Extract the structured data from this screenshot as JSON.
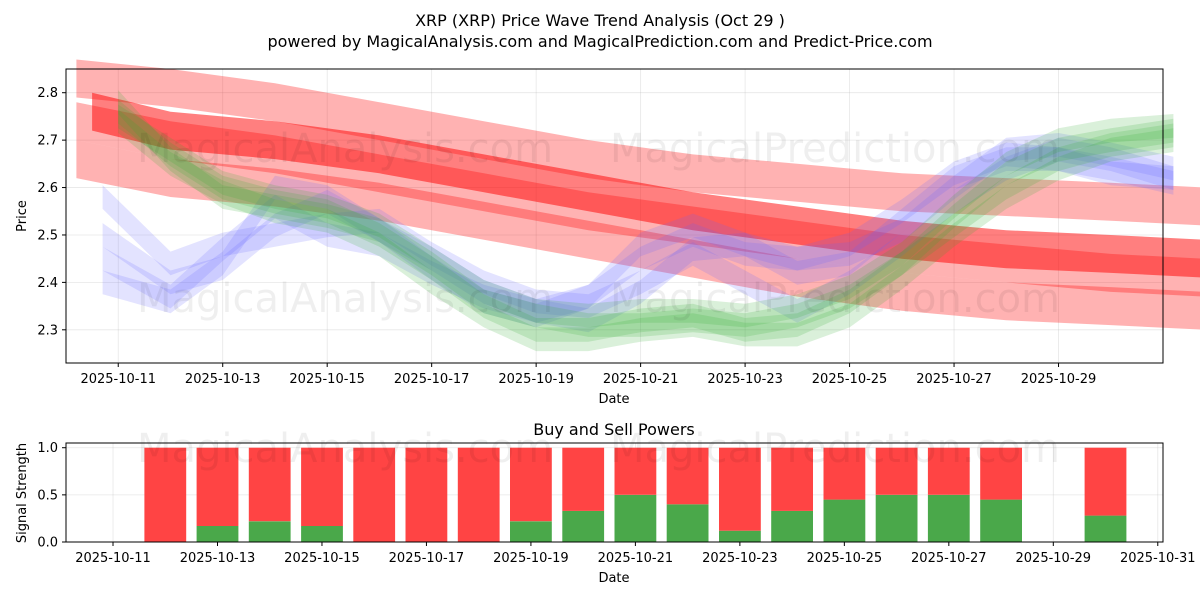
{
  "chart_data": [
    {
      "type": "line",
      "title": "XRP (XRP) Price Wave Trend Analysis (Oct 29 )",
      "subtitle": "powered by MagicalAnalysis.com and MagicalPrediction.com and Predict-Price.com",
      "xlabel": "Date",
      "ylabel": "Price",
      "xlim": [
        -1,
        20
      ],
      "ylim": [
        2.23,
        2.85
      ],
      "x_ticks": [
        0,
        2,
        4,
        6,
        8,
        10,
        12,
        14,
        16,
        18
      ],
      "x_tick_labels": [
        "2025-10-11",
        "2025-10-13",
        "2025-10-15",
        "2025-10-17",
        "2025-10-19",
        "2025-10-21",
        "2025-10-23",
        "2025-10-25",
        "2025-10-27",
        "2025-10-29"
      ],
      "y_ticks": [
        2.3,
        2.4,
        2.5,
        2.6,
        2.7,
        2.8
      ],
      "y_tick_labels": [
        "2.3",
        "2.4",
        "2.5",
        "2.6",
        "2.7",
        "2.8"
      ],
      "grid": true,
      "series": [
        {
          "name": "red-trend-main",
          "color": "#ff0000",
          "band": 0.04,
          "opacity": 0.5,
          "x": [
            -0.5,
            1,
            3,
            5,
            7,
            9,
            11,
            13,
            15,
            17,
            19,
            20.8
          ],
          "values": [
            2.76,
            2.72,
            2.7,
            2.67,
            2.63,
            2.59,
            2.55,
            2.52,
            2.49,
            2.47,
            2.46,
            2.45
          ]
        },
        {
          "name": "red-trend-upper",
          "color": "#ff0000",
          "band": 0.04,
          "opacity": 0.3,
          "x": [
            -0.8,
            1,
            3,
            5,
            7,
            9,
            11,
            13,
            15,
            17,
            19,
            20.8
          ],
          "values": [
            2.83,
            2.81,
            2.78,
            2.74,
            2.7,
            2.66,
            2.63,
            2.61,
            2.59,
            2.58,
            2.57,
            2.56
          ]
        },
        {
          "name": "red-trend-lower",
          "color": "#ff0000",
          "band": 0.04,
          "opacity": 0.3,
          "x": [
            -0.8,
            1,
            3,
            5,
            7,
            9,
            11,
            13,
            15,
            17,
            19,
            20.8
          ],
          "values": [
            2.66,
            2.62,
            2.6,
            2.57,
            2.53,
            2.49,
            2.45,
            2.41,
            2.38,
            2.36,
            2.35,
            2.34
          ]
        },
        {
          "name": "red-trend-mid",
          "color": "#ff0000",
          "band": 0.04,
          "opacity": 0.3,
          "x": [
            -0.8,
            1,
            3,
            5,
            7,
            9,
            11,
            13,
            15,
            17,
            19,
            20.8
          ],
          "values": [
            2.74,
            2.7,
            2.67,
            2.63,
            2.59,
            2.55,
            2.52,
            2.49,
            2.46,
            2.44,
            2.42,
            2.41
          ]
        },
        {
          "name": "blue-wave-1",
          "color": "#6666ff",
          "band": 0.025,
          "opacity": 0.18,
          "x": [
            -0.3,
            1,
            2,
            3,
            4,
            5,
            6,
            7,
            8,
            9,
            10,
            11,
            12,
            13,
            14,
            15,
            16,
            17,
            18,
            19,
            20.2
          ],
          "values": [
            2.4,
            2.36,
            2.44,
            2.6,
            2.58,
            2.51,
            2.43,
            2.36,
            2.33,
            2.37,
            2.48,
            2.52,
            2.48,
            2.42,
            2.44,
            2.53,
            2.62,
            2.66,
            2.66,
            2.64,
            2.61
          ]
        },
        {
          "name": "blue-wave-2",
          "color": "#6666ff",
          "band": 0.025,
          "opacity": 0.18,
          "x": [
            -0.3,
            1,
            2,
            3,
            4,
            5,
            6,
            7,
            8,
            9,
            10,
            11,
            12,
            13,
            14,
            15,
            16,
            17,
            18,
            19,
            20.2
          ],
          "values": [
            2.5,
            2.4,
            2.43,
            2.52,
            2.57,
            2.51,
            2.45,
            2.38,
            2.34,
            2.32,
            2.38,
            2.47,
            2.48,
            2.45,
            2.46,
            2.51,
            2.6,
            2.68,
            2.69,
            2.67,
            2.64
          ]
        },
        {
          "name": "blue-wave-3",
          "color": "#6666ff",
          "band": 0.025,
          "opacity": 0.18,
          "x": [
            -0.3,
            1,
            2,
            3,
            4,
            5,
            6,
            7,
            8,
            9,
            10,
            11,
            12,
            13,
            14,
            15,
            16,
            17,
            18,
            19,
            20.2
          ],
          "values": [
            2.58,
            2.44,
            2.48,
            2.5,
            2.52,
            2.53,
            2.46,
            2.4,
            2.36,
            2.35,
            2.4,
            2.46,
            2.4,
            2.34,
            2.4,
            2.48,
            2.57,
            2.64,
            2.68,
            2.66,
            2.62
          ]
        },
        {
          "name": "blue-wave-4",
          "color": "#6666ff",
          "band": 0.025,
          "opacity": 0.18,
          "x": [
            -0.3,
            1,
            2,
            3,
            4,
            5,
            6,
            7,
            8,
            9,
            10,
            11,
            12,
            13,
            14,
            15,
            16,
            17,
            18,
            19,
            20.2
          ],
          "values": [
            2.45,
            2.37,
            2.47,
            2.56,
            2.5,
            2.48,
            2.42,
            2.37,
            2.34,
            2.37,
            2.45,
            2.5,
            2.46,
            2.45,
            2.48,
            2.55,
            2.63,
            2.67,
            2.66,
            2.63,
            2.62
          ]
        },
        {
          "name": "green-wave-1",
          "color": "#33aa33",
          "band": 0.025,
          "opacity": 0.18,
          "x": [
            0,
            1,
            2,
            3,
            4,
            5,
            6,
            7,
            8,
            9,
            10,
            11,
            12,
            13,
            14,
            15,
            16,
            17,
            18,
            19,
            20.2
          ],
          "values": [
            2.78,
            2.66,
            2.58,
            2.56,
            2.54,
            2.51,
            2.44,
            2.36,
            2.33,
            2.31,
            2.31,
            2.32,
            2.31,
            2.33,
            2.37,
            2.44,
            2.52,
            2.6,
            2.66,
            2.69,
            2.71
          ]
        },
        {
          "name": "green-wave-2",
          "color": "#33aa33",
          "band": 0.025,
          "opacity": 0.18,
          "x": [
            0,
            1,
            2,
            3,
            4,
            5,
            6,
            7,
            8,
            9,
            10,
            11,
            12,
            13,
            14,
            15,
            16,
            17,
            18,
            19,
            20.2
          ],
          "values": [
            2.74,
            2.65,
            2.59,
            2.55,
            2.53,
            2.48,
            2.4,
            2.33,
            2.28,
            2.28,
            2.3,
            2.31,
            2.29,
            2.29,
            2.33,
            2.41,
            2.5,
            2.58,
            2.64,
            2.68,
            2.7
          ]
        },
        {
          "name": "green-wave-3",
          "color": "#33aa33",
          "band": 0.025,
          "opacity": 0.18,
          "x": [
            0,
            1,
            2,
            3,
            4,
            5,
            6,
            7,
            8,
            9,
            10,
            11,
            12,
            13,
            14,
            15,
            16,
            17,
            18,
            19,
            20.2
          ],
          "values": [
            2.75,
            2.68,
            2.61,
            2.58,
            2.56,
            2.52,
            2.45,
            2.38,
            2.34,
            2.33,
            2.34,
            2.34,
            2.33,
            2.35,
            2.39,
            2.46,
            2.56,
            2.65,
            2.7,
            2.72,
            2.73
          ]
        },
        {
          "name": "green-wave-4",
          "color": "#33aa33",
          "band": 0.025,
          "opacity": 0.18,
          "x": [
            0,
            1,
            2,
            3,
            4,
            5,
            6,
            7,
            8,
            9,
            10,
            11,
            12,
            13,
            14,
            15,
            16,
            17,
            18,
            19,
            20.2
          ],
          "values": [
            2.76,
            2.67,
            2.6,
            2.57,
            2.55,
            2.5,
            2.43,
            2.35,
            2.3,
            2.3,
            2.32,
            2.33,
            2.3,
            2.31,
            2.36,
            2.44,
            2.54,
            2.63,
            2.68,
            2.7,
            2.72
          ]
        }
      ]
    },
    {
      "type": "bar",
      "title": "Buy and Sell Powers",
      "xlabel": "Date",
      "ylabel": "Signal Strength",
      "xlim": [
        -0.9,
        20.1
      ],
      "ylim": [
        0,
        1.05
      ],
      "x_ticks": [
        0,
        2,
        4,
        6,
        8,
        10,
        12,
        14,
        16,
        18,
        20
      ],
      "x_tick_labels": [
        "2025-10-11",
        "2025-10-13",
        "2025-10-15",
        "2025-10-17",
        "2025-10-19",
        "2025-10-21",
        "2025-10-23",
        "2025-10-25",
        "2025-10-27",
        "2025-10-29",
        "2025-10-31"
      ],
      "y_ticks": [
        0,
        0.5,
        1.0
      ],
      "y_tick_labels": [
        "0.0",
        "0.5",
        "1.0"
      ],
      "grid": true,
      "buy_color": "#4aa84a",
      "sell_color": "#ff4444",
      "x": [
        1,
        2,
        3,
        4,
        5,
        6,
        7,
        8,
        9,
        10,
        11,
        12,
        13,
        14,
        15,
        16,
        17,
        19
      ],
      "buy": [
        0.0,
        0.17,
        0.22,
        0.17,
        0.0,
        0.0,
        0.0,
        0.22,
        0.33,
        0.5,
        0.4,
        0.12,
        0.33,
        0.45,
        0.5,
        0.5,
        0.45,
        0.28
      ],
      "sell": [
        1.0,
        0.83,
        0.78,
        0.83,
        1.0,
        1.0,
        1.0,
        0.78,
        0.67,
        0.5,
        0.6,
        0.88,
        0.67,
        0.55,
        0.5,
        0.5,
        0.55,
        0.72
      ]
    }
  ],
  "watermarks": [
    "MagicalAnalysis.com",
    "MagicalPrediction.com"
  ]
}
